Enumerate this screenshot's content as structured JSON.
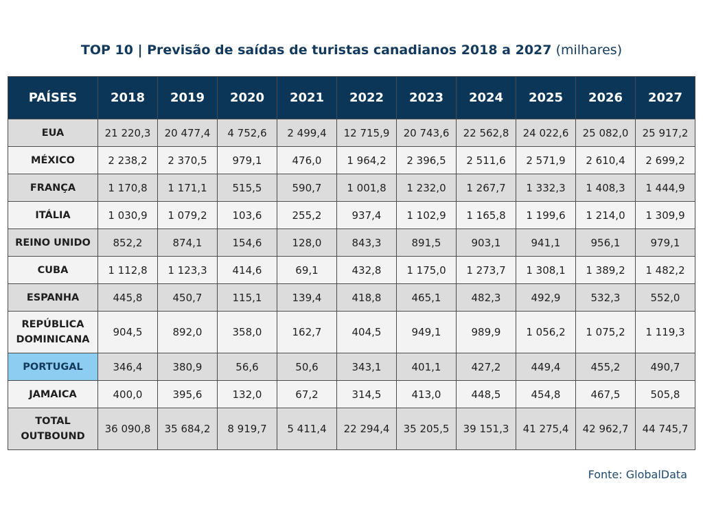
{
  "title": {
    "main": "TOP 10 | Previsão de saídas de turistas canadianos 2018 a 2027",
    "unit": "(milhares)"
  },
  "colors": {
    "header_bg": "#0b3657",
    "highlight": "#8ecdf2",
    "title_text": "#133a5c"
  },
  "table": {
    "headers": [
      "PAÍSES",
      "2018",
      "2019",
      "2020",
      "2021",
      "2022",
      "2023",
      "2024",
      "2025",
      "2026",
      "2027"
    ],
    "rows": [
      {
        "country": "EUA",
        "values": [
          "21 220,3",
          "20 477,4",
          "4 752,6",
          "2 499,4",
          "12 715,9",
          "20 743,6",
          "22 562,8",
          "24 022,6",
          "25 082,0",
          "25 917,2"
        ]
      },
      {
        "country": "MÉXICO",
        "values": [
          "2 238,2",
          "2 370,5",
          "979,1",
          "476,0",
          "1 964,2",
          "2 396,5",
          "2 511,6",
          "2 571,9",
          "2 610,4",
          "2 699,2"
        ]
      },
      {
        "country": "FRANÇA",
        "values": [
          "1 170,8",
          "1 171,1",
          "515,5",
          "590,7",
          "1 001,8",
          "1 232,0",
          "1 267,7",
          "1 332,3",
          "1 408,3",
          "1 444,9"
        ]
      },
      {
        "country": "ITÁLIA",
        "values": [
          "1 030,9",
          "1 079,2",
          "103,6",
          "255,2",
          "937,4",
          "1 102,9",
          "1 165,8",
          "1 199,6",
          "1 214,0",
          "1 309,9"
        ]
      },
      {
        "country": "REINO UNIDO",
        "values": [
          "852,2",
          "874,1",
          "154,6",
          "128,0",
          "843,3",
          "891,5",
          "903,1",
          "941,1",
          "956,1",
          "979,1"
        ]
      },
      {
        "country": "CUBA",
        "values": [
          "1 112,8",
          "1 123,3",
          "414,6",
          "69,1",
          "432,8",
          "1 175,0",
          "1 273,7",
          "1 308,1",
          "1 389,2",
          "1 482,2"
        ]
      },
      {
        "country": "ESPANHA",
        "values": [
          "445,8",
          "450,7",
          "115,1",
          "139,4",
          "418,8",
          "465,1",
          "482,3",
          "492,9",
          "532,3",
          "552,0"
        ]
      },
      {
        "country": "REPÚBLICA DOMINICANA",
        "values": [
          "904,5",
          "892,0",
          "358,0",
          "162,7",
          "404,5",
          "949,1",
          "989,9",
          "1 056,2",
          "1 075,2",
          "1 119,3"
        ]
      },
      {
        "country": "PORTUGAL",
        "highlight": true,
        "values": [
          "346,4",
          "380,9",
          "56,6",
          "50,6",
          "343,1",
          "401,1",
          "427,2",
          "449,4",
          "455,2",
          "490,7"
        ]
      },
      {
        "country": "JAMAICA",
        "values": [
          "400,0",
          "395,6",
          "132,0",
          "67,2",
          "314,5",
          "413,0",
          "448,5",
          "454,8",
          "467,5",
          "505,8"
        ]
      },
      {
        "country": "TOTAL OUTBOUND",
        "values": [
          "36 090,8",
          "35 684,2",
          "8 919,7",
          "5 411,4",
          "22 294,4",
          "35 205,5",
          "39 151,3",
          "41 275,4",
          "42 962,7",
          "44 745,7"
        ]
      }
    ]
  },
  "source": "Fonte: GlobalData"
}
